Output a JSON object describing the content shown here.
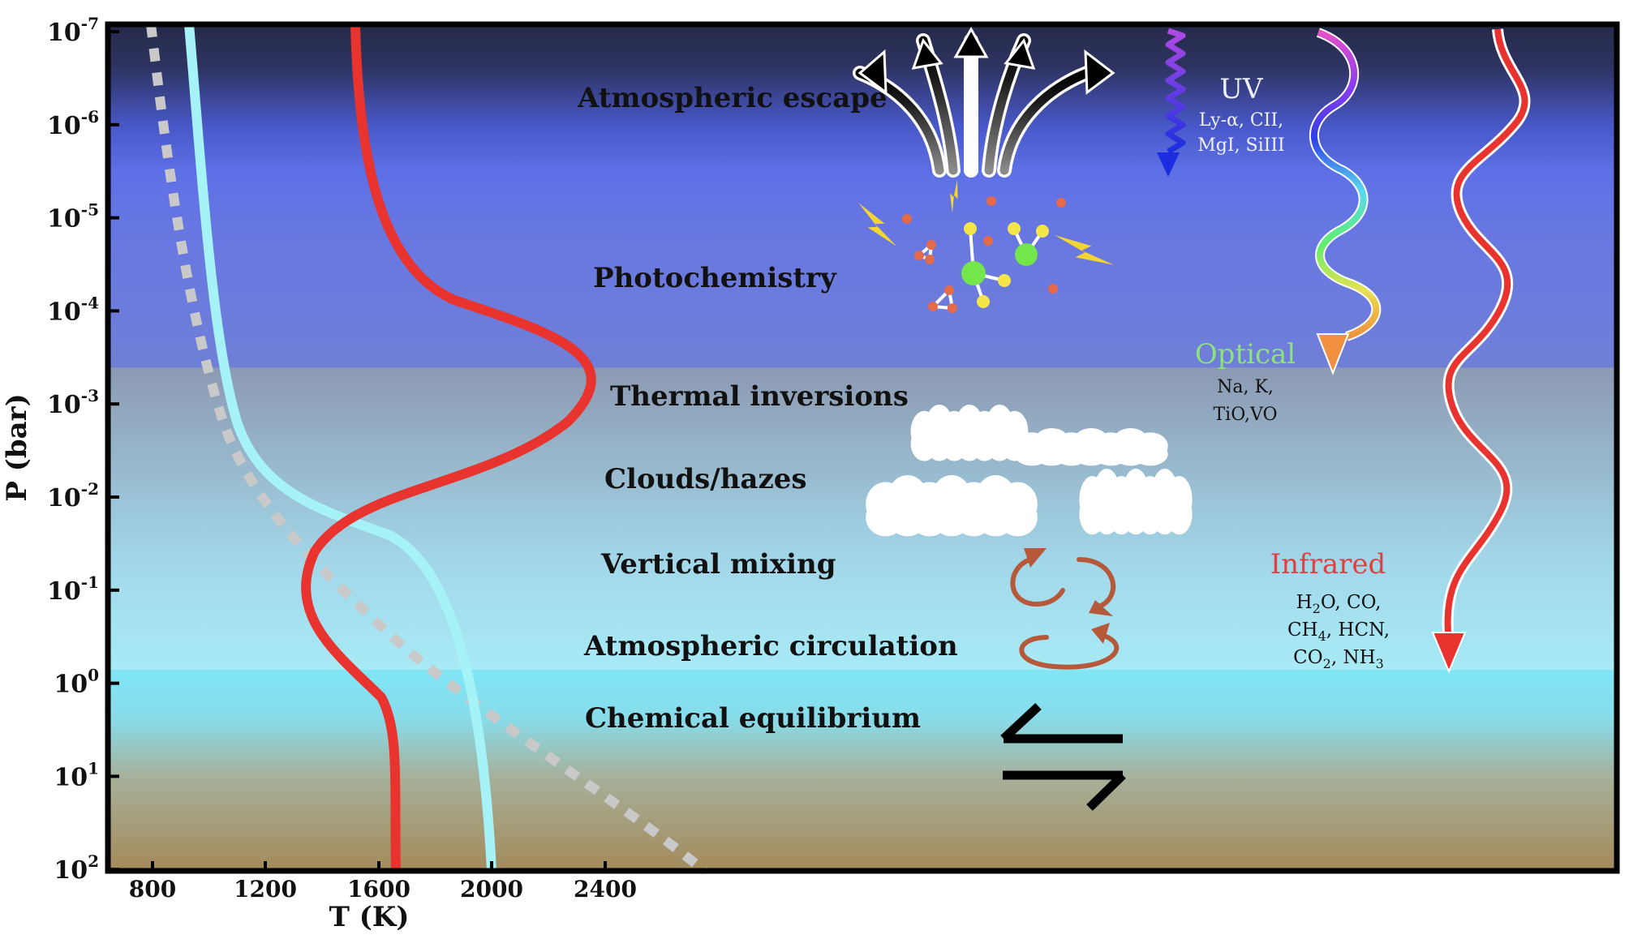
{
  "axes": {
    "xlabel": "T (K)",
    "ylabel": "P (bar)",
    "x_ticks": [
      800,
      1200,
      1600,
      2000,
      2400
    ],
    "y_tick_exponents": [
      "-7",
      "-6",
      "-5",
      "-4",
      "-3",
      "-2",
      "-1",
      "0",
      "1",
      "2"
    ],
    "y_tick_base": "10"
  },
  "layers": [
    {
      "label": "Atmospheric escape"
    },
    {
      "label": "Photochemistry"
    },
    {
      "label": "Thermal inversions"
    },
    {
      "label": "Clouds/hazes"
    },
    {
      "label": "Vertical mixing"
    },
    {
      "label": "Atmospheric circulation"
    },
    {
      "label": "Chemical equilibrium"
    }
  ],
  "radiation": {
    "uv": {
      "title": "UV",
      "species": [
        "Ly-α, CII,",
        "MgI, SiIII"
      ]
    },
    "optical": {
      "title": "Optical",
      "species": [
        "Na, K,",
        "TiO,VO"
      ]
    },
    "infrared": {
      "title": "Infrared",
      "species_lines": [
        [
          {
            "t": "H"
          },
          {
            "t": "2",
            "sub": true
          },
          {
            "t": "O, CO,"
          }
        ],
        [
          {
            "t": "CH"
          },
          {
            "t": "4",
            "sub": true
          },
          {
            "t": ", HCN,"
          }
        ],
        [
          {
            "t": "CO"
          },
          {
            "t": "2",
            "sub": true
          },
          {
            "t": ", NH"
          },
          {
            "t": "3",
            "sub": true
          }
        ]
      ]
    }
  },
  "colors": {
    "inverted_profile": "#e8332f",
    "noninverted_profile": "#a6f3f7",
    "dashed_profile": "#c9c9c9",
    "uv_arrow": "#5a3be0",
    "infrared_label": "#e04040",
    "optical_label": "#8ee27a",
    "mixing_arrows": "#b5593a"
  }
}
